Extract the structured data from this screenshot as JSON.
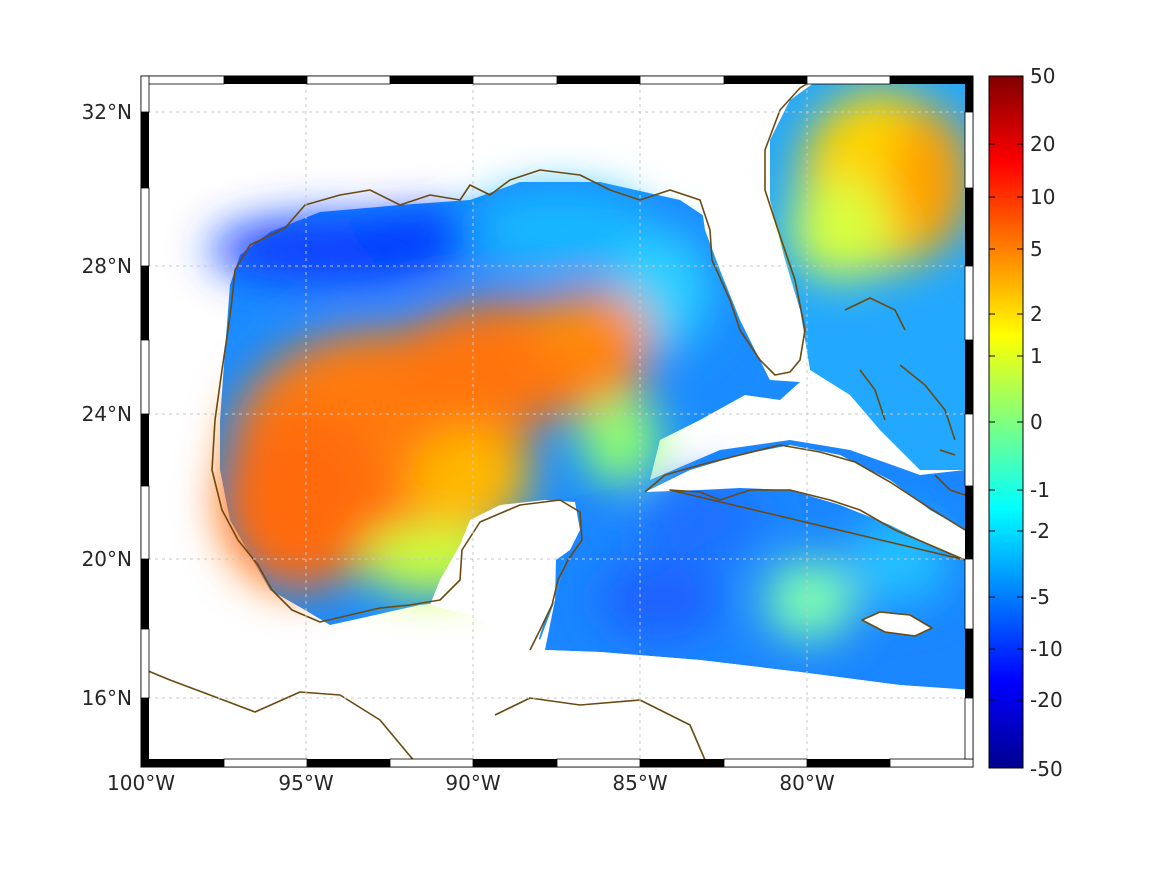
{
  "map": {
    "lat_labels": [
      "32°N",
      "28°N",
      "24°N",
      "20°N",
      "16°N"
    ],
    "lon_labels": [
      "100°W",
      "95°W",
      "90°W",
      "85°W",
      "80°W"
    ],
    "lat_values": [
      32,
      28,
      24,
      20,
      16
    ],
    "lon_values": [
      -100,
      -95,
      -90,
      -85,
      -80
    ],
    "lon_range": [
      -100,
      -75
    ],
    "lat_range": [
      14.3,
      33
    ],
    "grid": true,
    "coastline_color": "#6b4a12"
  },
  "colorbar": {
    "tick_labels": [
      "50",
      "20",
      "10",
      "5",
      "2",
      "1",
      "0",
      "-1",
      "-2",
      "-5",
      "-10",
      "-20",
      "-50"
    ],
    "colormap": "jet",
    "placement": "right"
  },
  "chart_data": {
    "type": "heatmap",
    "title": "",
    "xlabel": "",
    "ylabel": "",
    "x_ticks": [
      "100°W",
      "95°W",
      "90°W",
      "85°W",
      "80°W"
    ],
    "y_ticks": [
      "32°N",
      "28°N",
      "24°N",
      "20°N",
      "16°N"
    ],
    "color_scale_ticks": [
      50,
      20,
      10,
      5,
      2,
      1,
      0,
      -1,
      -2,
      -5,
      -10,
      -20,
      -50
    ],
    "color_range": [
      -50,
      50
    ]
  }
}
